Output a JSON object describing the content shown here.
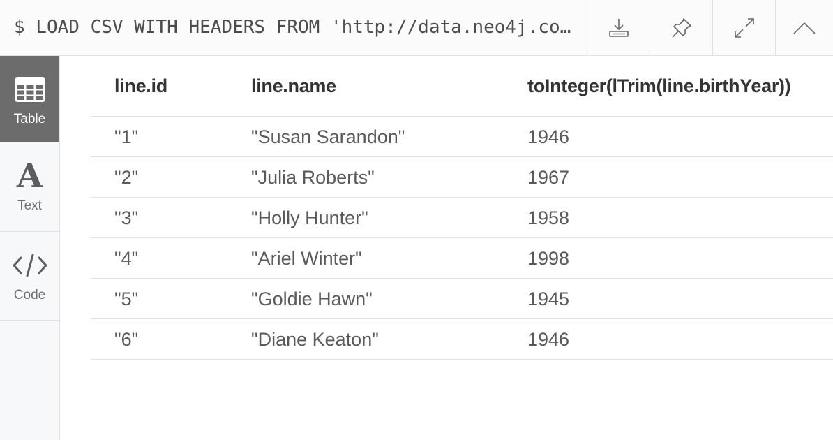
{
  "query": "$ LOAD CSV WITH HEADERS FROM 'http://data.neo4j.com/...'",
  "toolbar": {
    "download_icon": "download-icon",
    "pin_icon": "pin-icon",
    "expand_icon": "expand-icon",
    "collapse_icon": "chevron-up-icon"
  },
  "sidebar": {
    "items": [
      {
        "label": "Table",
        "icon": "table-icon",
        "active": true
      },
      {
        "label": "Text",
        "icon": "text-icon",
        "active": false
      },
      {
        "label": "Code",
        "icon": "code-icon",
        "active": false
      }
    ]
  },
  "table": {
    "columns": [
      "line.id",
      "line.name",
      "toInteger(lTrim(line.birthYear))"
    ],
    "rows": [
      [
        "\"1\"",
        "\"Susan Sarandon\"",
        "1946"
      ],
      [
        "\"2\"",
        "\"Julia Roberts\"",
        "1967"
      ],
      [
        "\"3\"",
        "\"Holly Hunter\"",
        "1958"
      ],
      [
        "\"4\"",
        "\"Ariel Winter\"",
        "1998"
      ],
      [
        "\"5\"",
        "\"Goldie Hawn\"",
        "1945"
      ],
      [
        "\"6\"",
        "\"Diane Keaton\"",
        "1946"
      ]
    ]
  },
  "colors": {
    "active_tab": "#6c6c6c",
    "border": "#dfe1e5",
    "header_text": "#333333"
  }
}
